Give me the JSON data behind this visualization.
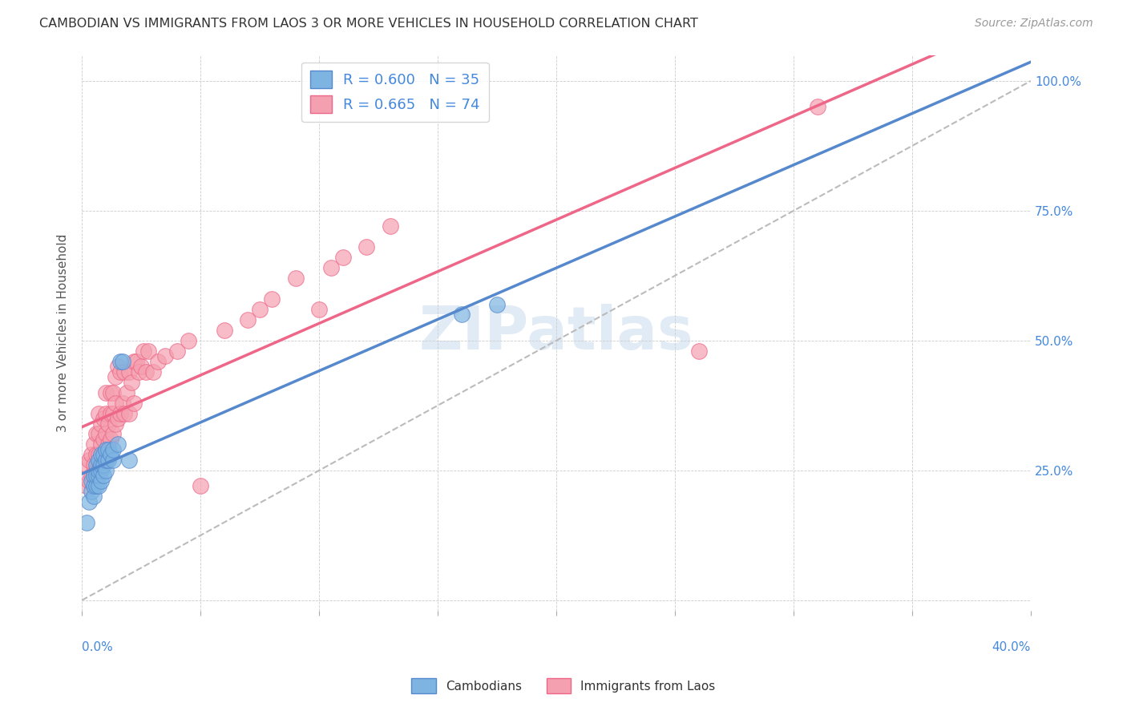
{
  "title": "CAMBODIAN VS IMMIGRANTS FROM LAOS 3 OR MORE VEHICLES IN HOUSEHOLD CORRELATION CHART",
  "source": "Source: ZipAtlas.com",
  "ylabel": "3 or more Vehicles in Household",
  "ytick_values": [
    0.0,
    0.25,
    0.5,
    0.75,
    1.0
  ],
  "ytick_labels": [
    "",
    "25.0%",
    "50.0%",
    "75.0%",
    "100.0%"
  ],
  "xlim": [
    0.0,
    0.4
  ],
  "ylim": [
    -0.02,
    1.05
  ],
  "legend_cambodian_R": "0.600",
  "legend_cambodian_N": "35",
  "legend_laos_R": "0.665",
  "legend_laos_N": "74",
  "color_cambodian": "#7EB4E2",
  "color_laos": "#F4A0B0",
  "trendline_cambodian_color": "#5588CC",
  "trendline_laos_color": "#EE6688",
  "diagonal_color": "#BBBBBB",
  "watermark": "ZIPatlas",
  "cambodian_x": [
    0.002,
    0.003,
    0.004,
    0.004,
    0.005,
    0.005,
    0.005,
    0.006,
    0.006,
    0.006,
    0.007,
    0.007,
    0.007,
    0.007,
    0.008,
    0.008,
    0.008,
    0.008,
    0.009,
    0.009,
    0.009,
    0.01,
    0.01,
    0.01,
    0.011,
    0.011,
    0.012,
    0.013,
    0.013,
    0.015,
    0.016,
    0.017,
    0.02,
    0.16,
    0.175
  ],
  "cambodian_y": [
    0.15,
    0.19,
    0.21,
    0.23,
    0.2,
    0.22,
    0.24,
    0.22,
    0.24,
    0.26,
    0.22,
    0.24,
    0.25,
    0.27,
    0.23,
    0.25,
    0.26,
    0.28,
    0.24,
    0.26,
    0.28,
    0.25,
    0.27,
    0.29,
    0.27,
    0.29,
    0.28,
    0.27,
    0.29,
    0.3,
    0.46,
    0.46,
    0.27,
    0.55,
    0.57
  ],
  "laos_x": [
    0.002,
    0.002,
    0.003,
    0.003,
    0.004,
    0.004,
    0.005,
    0.005,
    0.005,
    0.006,
    0.006,
    0.006,
    0.007,
    0.007,
    0.007,
    0.007,
    0.008,
    0.008,
    0.008,
    0.009,
    0.009,
    0.009,
    0.01,
    0.01,
    0.01,
    0.01,
    0.011,
    0.011,
    0.012,
    0.012,
    0.012,
    0.013,
    0.013,
    0.013,
    0.014,
    0.014,
    0.014,
    0.015,
    0.015,
    0.016,
    0.016,
    0.017,
    0.018,
    0.018,
    0.019,
    0.02,
    0.02,
    0.021,
    0.022,
    0.022,
    0.023,
    0.024,
    0.025,
    0.026,
    0.027,
    0.028,
    0.03,
    0.032,
    0.035,
    0.04,
    0.045,
    0.05,
    0.06,
    0.07,
    0.075,
    0.08,
    0.09,
    0.1,
    0.105,
    0.11,
    0.12,
    0.13,
    0.26,
    0.31
  ],
  "laos_y": [
    0.22,
    0.26,
    0.23,
    0.27,
    0.24,
    0.28,
    0.24,
    0.26,
    0.3,
    0.25,
    0.28,
    0.32,
    0.25,
    0.28,
    0.32,
    0.36,
    0.26,
    0.3,
    0.34,
    0.27,
    0.31,
    0.35,
    0.28,
    0.32,
    0.36,
    0.4,
    0.3,
    0.34,
    0.31,
    0.36,
    0.4,
    0.32,
    0.36,
    0.4,
    0.34,
    0.38,
    0.43,
    0.35,
    0.45,
    0.36,
    0.44,
    0.38,
    0.36,
    0.44,
    0.4,
    0.36,
    0.44,
    0.42,
    0.38,
    0.46,
    0.46,
    0.44,
    0.45,
    0.48,
    0.44,
    0.48,
    0.44,
    0.46,
    0.47,
    0.48,
    0.5,
    0.22,
    0.52,
    0.54,
    0.56,
    0.58,
    0.62,
    0.56,
    0.64,
    0.66,
    0.68,
    0.72,
    0.48,
    0.95
  ]
}
